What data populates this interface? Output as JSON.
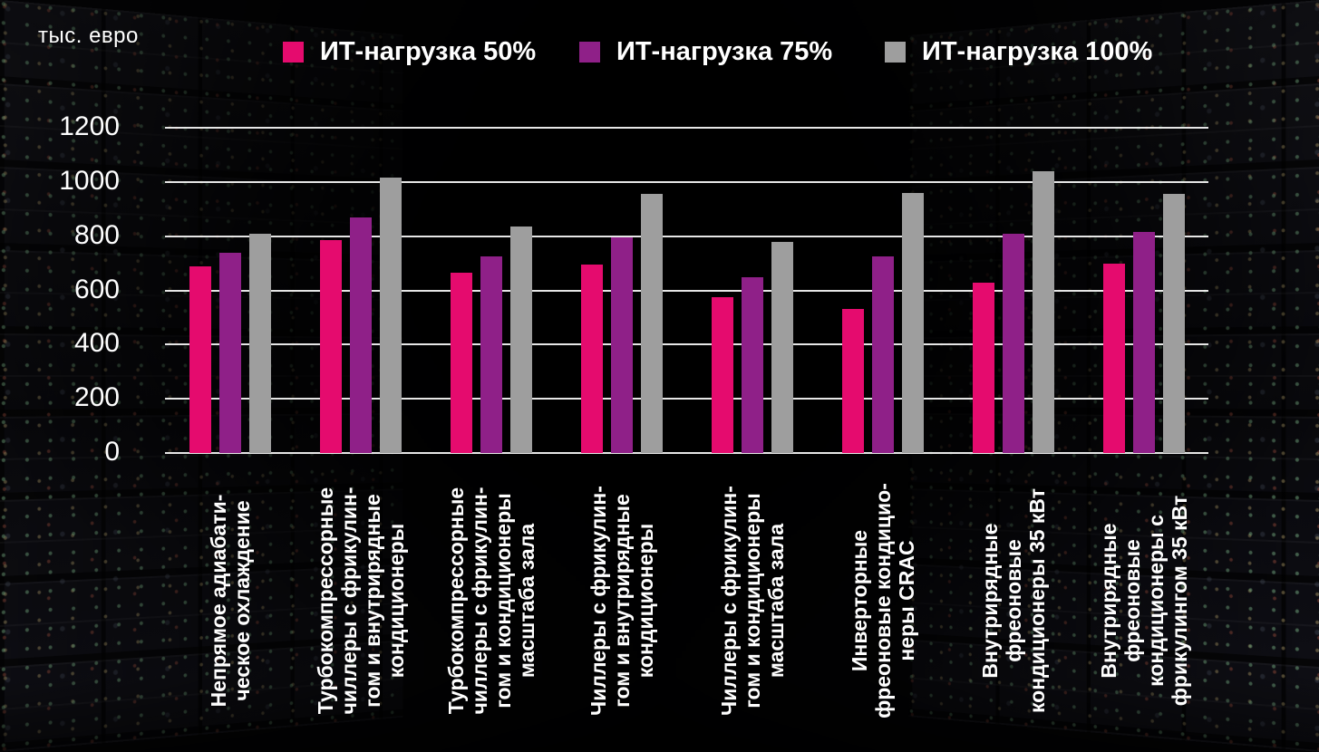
{
  "unit_label": "тыс. евро",
  "colors": {
    "text": "#ffffff",
    "gridline": "#fafafa",
    "background": "#060608",
    "series_50": "#e50b6e",
    "series_75": "#8f2088",
    "series_100": "#9e9e9e"
  },
  "legend": {
    "items": [
      {
        "label": "ИТ-нагрузка 50%",
        "color": "#e50b6e"
      },
      {
        "label": "ИТ-нагрузка 75%",
        "color": "#8f2088"
      },
      {
        "label": "ИТ-нагрузка 100%",
        "color": "#9e9e9e"
      }
    ]
  },
  "chart_data": {
    "type": "bar",
    "title": "",
    "ylabel": "тыс. евро",
    "xlabel": "",
    "ylim": [
      0,
      1200
    ],
    "y_ticks": [
      0,
      200,
      400,
      600,
      800,
      1000,
      1200
    ],
    "grid": true,
    "legend_position": "top",
    "categories": [
      "Непрямое адиабати-ческое охлаждение",
      "Турбокомпрессорные чиллеры с фрикулин-гом и внутрирядные кондиционеры",
      "Турбокомпрессорные чиллеры с фрикулин-гом и кондиционеры масштаба зала",
      "Чиллеры с фрикулин-гом и внутрирядные кондиционеры",
      "Чиллеры с фрикулин-гом и кондиционеры масштаба зала",
      "Инверторные фреоновые кондицио-неры CRAC",
      "Внутрирядные фреоновые кондиционеры 35 кВт",
      "Внутрирядные фреоновые кондиционеры с фрикулингом 35 кВт"
    ],
    "categories_lines": [
      [
        "Непрямое адиабати-",
        "ческое охлаждение"
      ],
      [
        "Турбокомпрессорные",
        "чиллеры с фрикулин-",
        "гом и внутрирядные",
        "кондиционеры"
      ],
      [
        "Турбокомпрессорные",
        "чиллеры с фрикулин-",
        "гом и кондиционеры",
        "масштаба зала"
      ],
      [
        "Чиллеры с фрикулин-",
        "гом и внутрирядные",
        "кондиционеры"
      ],
      [
        "Чиллеры с фрикулин-",
        "гом и кондиционеры",
        "масштаба зала"
      ],
      [
        "Инверторные",
        "фреоновые кондицио-",
        "неры CRAC"
      ],
      [
        "Внутрирядные",
        "фреоновые",
        "кондиционеры 35 кВт"
      ],
      [
        "Внутрирядные",
        "фреоновые",
        "кондиционеры с",
        "фрикулингом 35 кВт"
      ]
    ],
    "series": [
      {
        "name": "ИТ-нагрузка 50%",
        "color": "#e50b6e",
        "values": [
          690,
          785,
          665,
          695,
          575,
          530,
          630,
          700
        ]
      },
      {
        "name": "ИТ-нагрузка 75%",
        "color": "#8f2088",
        "values": [
          740,
          870,
          725,
          795,
          650,
          725,
          810,
          815
        ]
      },
      {
        "name": "ИТ-нагрузка 100%",
        "color": "#9e9e9e",
        "values": [
          810,
          1015,
          835,
          955,
          780,
          960,
          1040,
          955
        ]
      }
    ]
  }
}
